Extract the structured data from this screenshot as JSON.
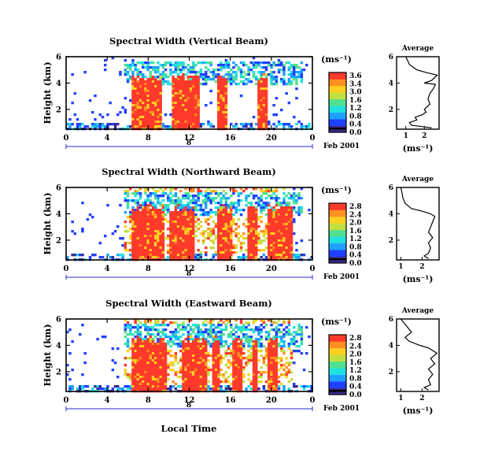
{
  "figure": {
    "xlabel": "Local Time",
    "date_label": "Feb 2001",
    "day_label": "8",
    "ylabel": "Height (km)",
    "unit_label": "(ms⁻¹)",
    "avg_title": "Average"
  },
  "panels": [
    {
      "title": "Spectral Width (Vertical Beam)",
      "colorbar_ticks": [
        "3.6",
        "3.4",
        "3.0",
        "1.6",
        "1.2",
        "0.8",
        "0.4",
        "0.0"
      ],
      "avg_ticks": [
        "1",
        "2"
      ]
    },
    {
      "title": "Spectral Width (Northward Beam)",
      "colorbar_ticks": [
        "2.8",
        "2.4",
        "2.0",
        "1.6",
        "1.2",
        "0.8",
        "0.4",
        "0.0"
      ],
      "avg_ticks": [
        "1",
        "2"
      ]
    },
    {
      "title": "Spectral Width (Eastward Beam)",
      "colorbar_ticks": [
        "2.8",
        "2.4",
        "2.0",
        "1.6",
        "1.2",
        "0.8",
        "0.4",
        "0.0"
      ],
      "avg_ticks": [
        "1",
        "2"
      ]
    }
  ],
  "colors": {
    "palette": [
      "#3a2a8f",
      "#2040ff",
      "#1fa0ff",
      "#20e0e0",
      "#50e090",
      "#c0e040",
      "#ffd020",
      "#ff9020",
      "#ff3a2a",
      "#e8e8e8"
    ]
  },
  "chart_data": [
    {
      "type": "heatmap",
      "title": "Spectral Width (Vertical Beam)",
      "xlabel": "Local Time",
      "ylabel": "Height (km)",
      "x_ticks": [
        "0",
        "4",
        "8",
        "12",
        "16",
        "20",
        "0"
      ],
      "y_ticks": [
        "6",
        "4",
        "2"
      ],
      "xlim": [
        0,
        24
      ],
      "ylim": [
        0.5,
        6
      ],
      "colorbar_range": [
        0,
        3.6
      ],
      "strong_periods": [
        [
          6.2,
          9.2
        ],
        [
          10.2,
          10.8
        ],
        [
          11.0,
          13.0
        ],
        [
          14.6,
          15.6
        ],
        [
          18.5,
          19.6
        ]
      ],
      "average_profile": {
        "height": [
          0.6,
          0.8,
          1.0,
          1.2,
          1.4,
          1.6,
          1.8,
          2.0,
          2.4,
          2.8,
          3.2,
          3.6,
          3.9,
          4.0,
          4.2,
          4.6,
          4.8,
          5.0,
          5.4,
          6.0
        ],
        "width": [
          2.4,
          1.3,
          1.2,
          1.6,
          1.5,
          1.9,
          2.1,
          2.0,
          2.3,
          2.2,
          2.3,
          2.5,
          2.6,
          2.0,
          2.4,
          2.7,
          2.1,
          1.6,
          1.2,
          1.0
        ],
        "xlim": [
          0.5,
          2.8
        ]
      }
    },
    {
      "type": "heatmap",
      "title": "Spectral Width (Northward Beam)",
      "xlabel": "Local Time",
      "ylabel": "Height (km)",
      "x_ticks": [
        "0",
        "4",
        "8",
        "12",
        "16",
        "20",
        "0"
      ],
      "y_ticks": [
        "6",
        "4",
        "2"
      ],
      "xlim": [
        0,
        24
      ],
      "ylim": [
        0.5,
        6
      ],
      "colorbar_range": [
        0,
        2.8
      ],
      "strong_periods": [
        [
          6.2,
          9.5
        ],
        [
          9.9,
          12.5
        ],
        [
          14.5,
          16.0
        ],
        [
          17.5,
          18.5
        ],
        [
          19.5,
          22.0
        ]
      ],
      "average_profile": {
        "height": [
          0.6,
          0.8,
          1.0,
          1.4,
          1.8,
          2.2,
          2.6,
          3.0,
          3.4,
          3.8,
          4.0,
          4.2,
          4.4,
          4.8,
          5.2,
          5.6,
          6.0
        ],
        "width": [
          2.3,
          2.1,
          2.3,
          2.4,
          2.3,
          2.5,
          2.3,
          2.4,
          2.5,
          2.6,
          2.4,
          2.0,
          1.5,
          1.2,
          1.1,
          1.05,
          1.0
        ],
        "xlim": [
          0.8,
          2.8
        ]
      }
    },
    {
      "type": "heatmap",
      "title": "Spectral Width (Eastward Beam)",
      "xlabel": "Local Time",
      "ylabel": "Height (km)",
      "x_ticks": [
        "0",
        "4",
        "8",
        "12",
        "16",
        "20",
        "0"
      ],
      "y_ticks": [
        "6",
        "4",
        "2"
      ],
      "xlim": [
        0,
        24
      ],
      "ylim": [
        0.5,
        6
      ],
      "colorbar_range": [
        0,
        2.8
      ],
      "strong_periods": [
        [
          6.2,
          9.7
        ],
        [
          11.2,
          13.5
        ],
        [
          14.0,
          14.8
        ],
        [
          16.0,
          17.0
        ],
        [
          18.0,
          18.5
        ],
        [
          19.5,
          20.5
        ]
      ],
      "average_profile": {
        "height": [
          0.6,
          0.8,
          1.0,
          1.4,
          1.8,
          2.2,
          2.6,
          3.0,
          3.4,
          3.8,
          4.0,
          4.3,
          4.6,
          5.0,
          5.4,
          5.8,
          6.0
        ],
        "width": [
          2.3,
          2.1,
          2.4,
          2.3,
          2.5,
          2.3,
          2.6,
          2.4,
          2.7,
          2.3,
          1.9,
          1.4,
          1.2,
          1.5,
          1.3,
          1.1,
          1.0
        ],
        "xlim": [
          0.8,
          2.8
        ]
      }
    }
  ]
}
